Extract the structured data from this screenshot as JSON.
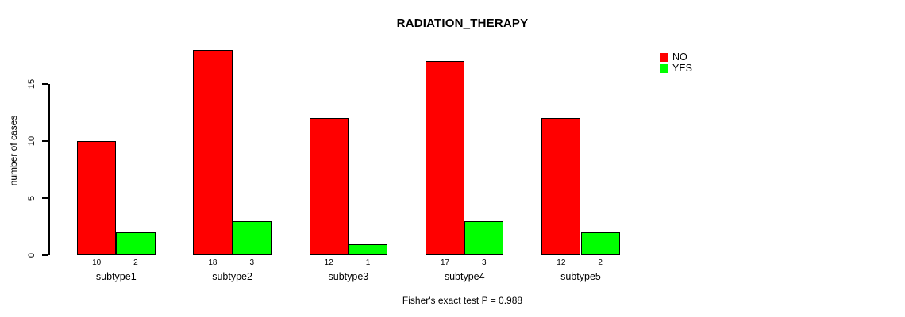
{
  "chart_data": {
    "type": "bar",
    "title": "RADIATION_THERAPY",
    "xlabel": "",
    "ylabel": "number of cases",
    "categories": [
      "subtype1",
      "subtype2",
      "subtype3",
      "subtype4",
      "subtype5"
    ],
    "series": [
      {
        "name": "NO",
        "color": "#FF0000",
        "values": [
          10,
          18,
          12,
          17,
          12
        ]
      },
      {
        "name": "YES",
        "color": "#00FF00",
        "values": [
          2,
          3,
          1,
          3,
          2
        ]
      }
    ],
    "yticks": [
      0,
      5,
      10,
      15
    ],
    "ylim": [
      0,
      18
    ],
    "bar_value_labels_shown": true,
    "grid": false,
    "legend_position": "top-right",
    "legend_labels": [
      "NO",
      "YES"
    ],
    "annotation": "Fisher's exact test P = 0.988"
  }
}
